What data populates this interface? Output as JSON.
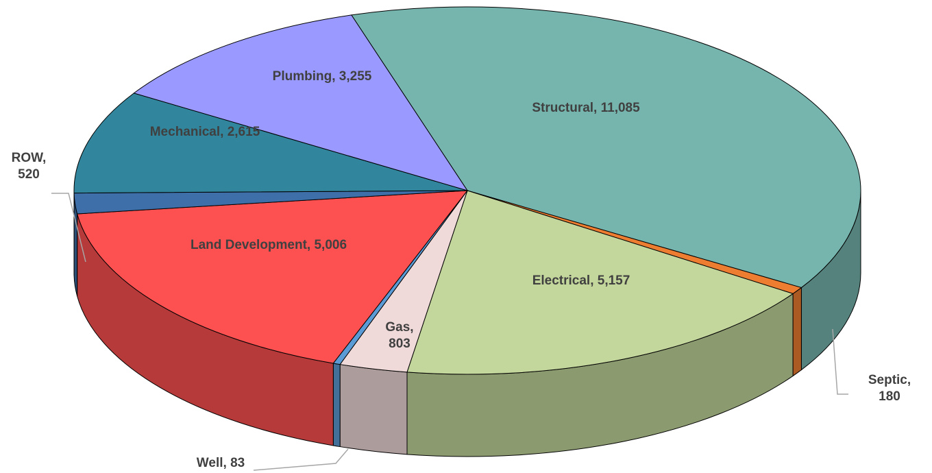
{
  "chart_data": {
    "type": "pie3d",
    "values": [
      11085,
      180,
      5157,
      803,
      83,
      5006,
      520,
      2615,
      3255
    ],
    "value_labels": [
      "Structural, 11,085",
      "Septic, 180",
      "Electrical, 5,157",
      "Gas, 803",
      "Well, 83",
      "Land Development, 5,006",
      "ROW, 520",
      "Mechanical, 2,615",
      "Plumbing, 3,255"
    ],
    "colors": [
      "#76b5ae",
      "#ed7d31",
      "#c3d69b",
      "#f0d9d9",
      "#5b9bd5",
      "#fd5050",
      "#3e6fa8",
      "#31859c",
      "#9999ff"
    ]
  }
}
